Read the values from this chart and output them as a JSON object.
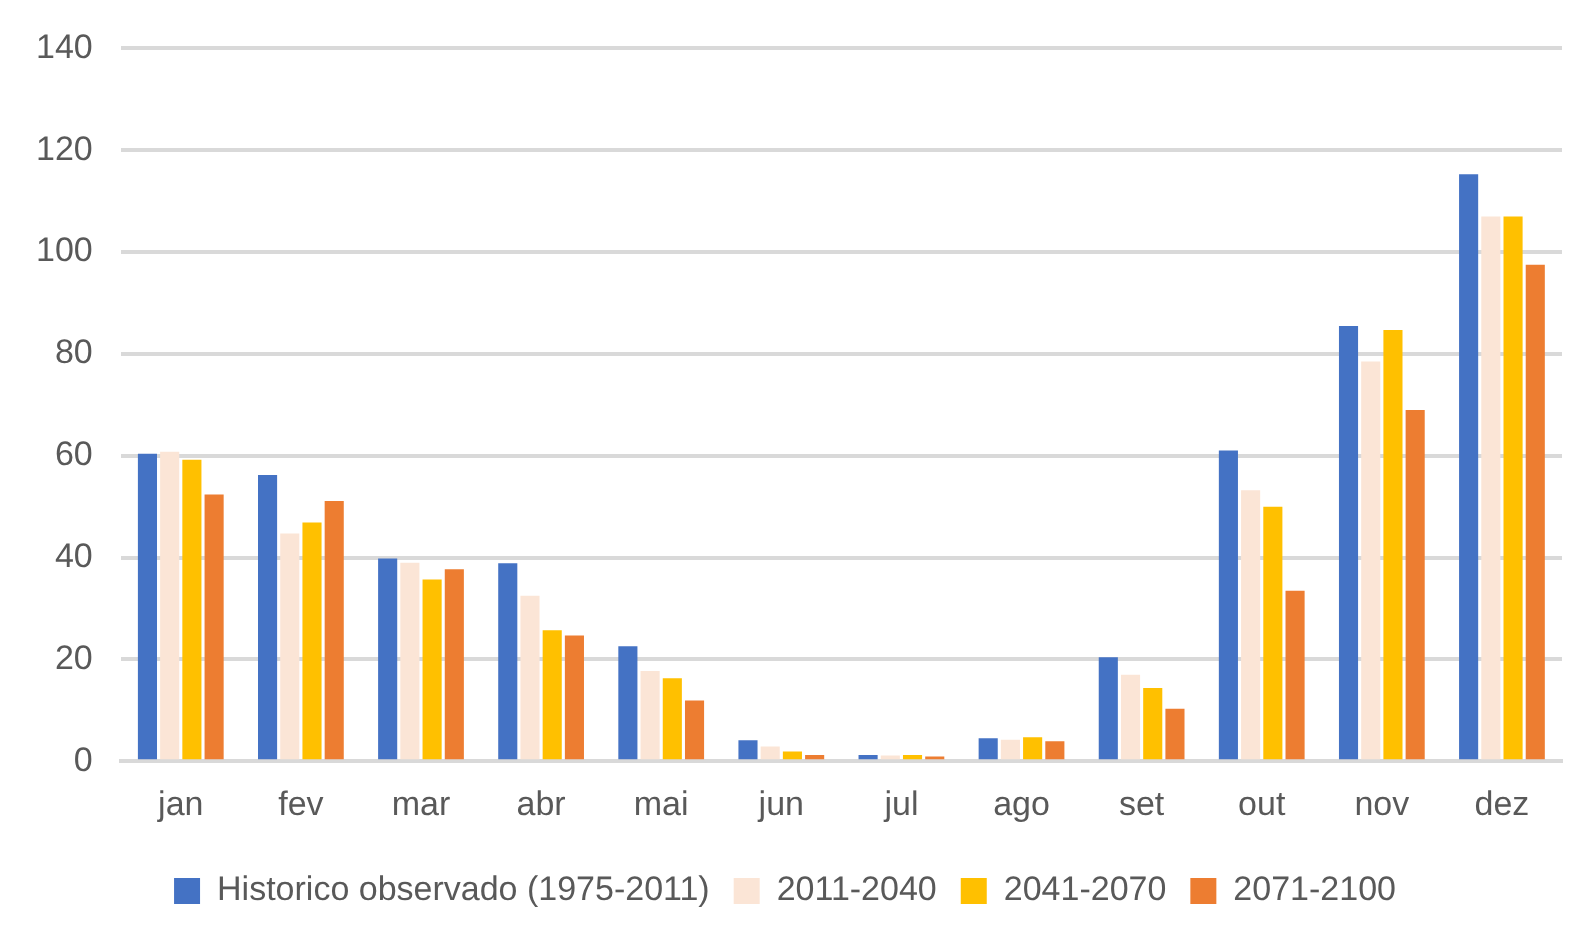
{
  "chart_data": {
    "type": "bar",
    "categories": [
      "jan",
      "fev",
      "mar",
      "abr",
      "mai",
      "jun",
      "jul",
      "ago",
      "set",
      "out",
      "nov",
      "dez"
    ],
    "series": [
      {
        "name": "Historico observado (1975-2011)",
        "color": "#4472c4",
        "values": [
          60.4,
          56.2,
          39.8,
          38.9,
          22.6,
          4.1,
          1.2,
          4.5,
          20.4,
          61.0,
          85.5,
          115.3
        ]
      },
      {
        "name": "2011-2040",
        "color": "#fbe5d6",
        "values": [
          60.8,
          44.7,
          39.0,
          32.5,
          17.7,
          2.9,
          1.1,
          4.2,
          17.0,
          53.2,
          78.5,
          107.0
        ]
      },
      {
        "name": "2041-2070",
        "color": "#ffc000",
        "values": [
          59.2,
          46.9,
          35.7,
          25.7,
          16.3,
          1.9,
          1.2,
          4.7,
          14.4,
          50.0,
          84.7,
          107.0
        ]
      },
      {
        "name": "2071-2100",
        "color": "#ed7d31",
        "values": [
          52.4,
          51.1,
          37.7,
          24.7,
          11.9,
          1.2,
          0.9,
          3.9,
          10.3,
          33.5,
          69.0,
          97.5
        ]
      }
    ],
    "ylim": [
      0,
      140
    ],
    "yticks": [
      0,
      20,
      40,
      60,
      80,
      100,
      120,
      140
    ],
    "grid": "y",
    "legend": "bottom"
  }
}
